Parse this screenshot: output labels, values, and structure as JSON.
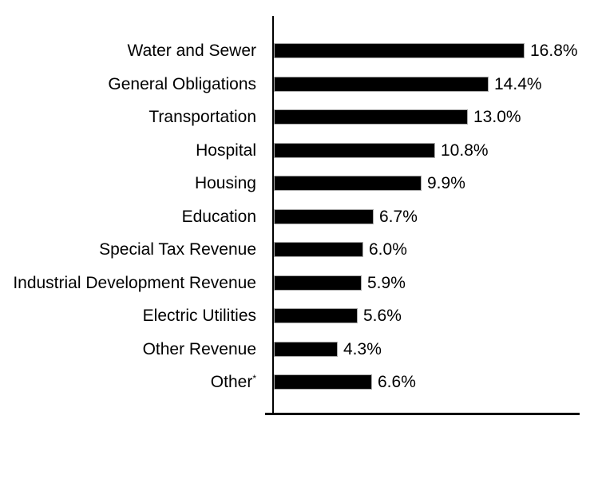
{
  "chart_data": {
    "type": "bar",
    "orientation": "horizontal",
    "title": "",
    "xlabel": "",
    "ylabel": "",
    "grid": false,
    "legend": false,
    "xlim": [
      0,
      20.5
    ],
    "bar_color": "#000000",
    "bar_outline_color": "#a8a8a8",
    "axis_color": "#000000",
    "categories": [
      "Water and Sewer",
      "General Obligations",
      "Transportation",
      "Hospital",
      "Housing",
      "Education",
      "Special Tax Revenue",
      "Industrial Development Revenue",
      "Electric Utilities",
      "Other Revenue",
      "Other*"
    ],
    "values": [
      16.8,
      14.4,
      13.0,
      10.8,
      9.9,
      6.7,
      6.0,
      5.9,
      5.6,
      4.3,
      6.6
    ],
    "value_labels": [
      "16.8%",
      "14.4%",
      "13.0%",
      "10.8%",
      "9.9%",
      "6.7%",
      "6.0%",
      "5.9%",
      "5.6%",
      "4.3%",
      "6.6%"
    ]
  }
}
